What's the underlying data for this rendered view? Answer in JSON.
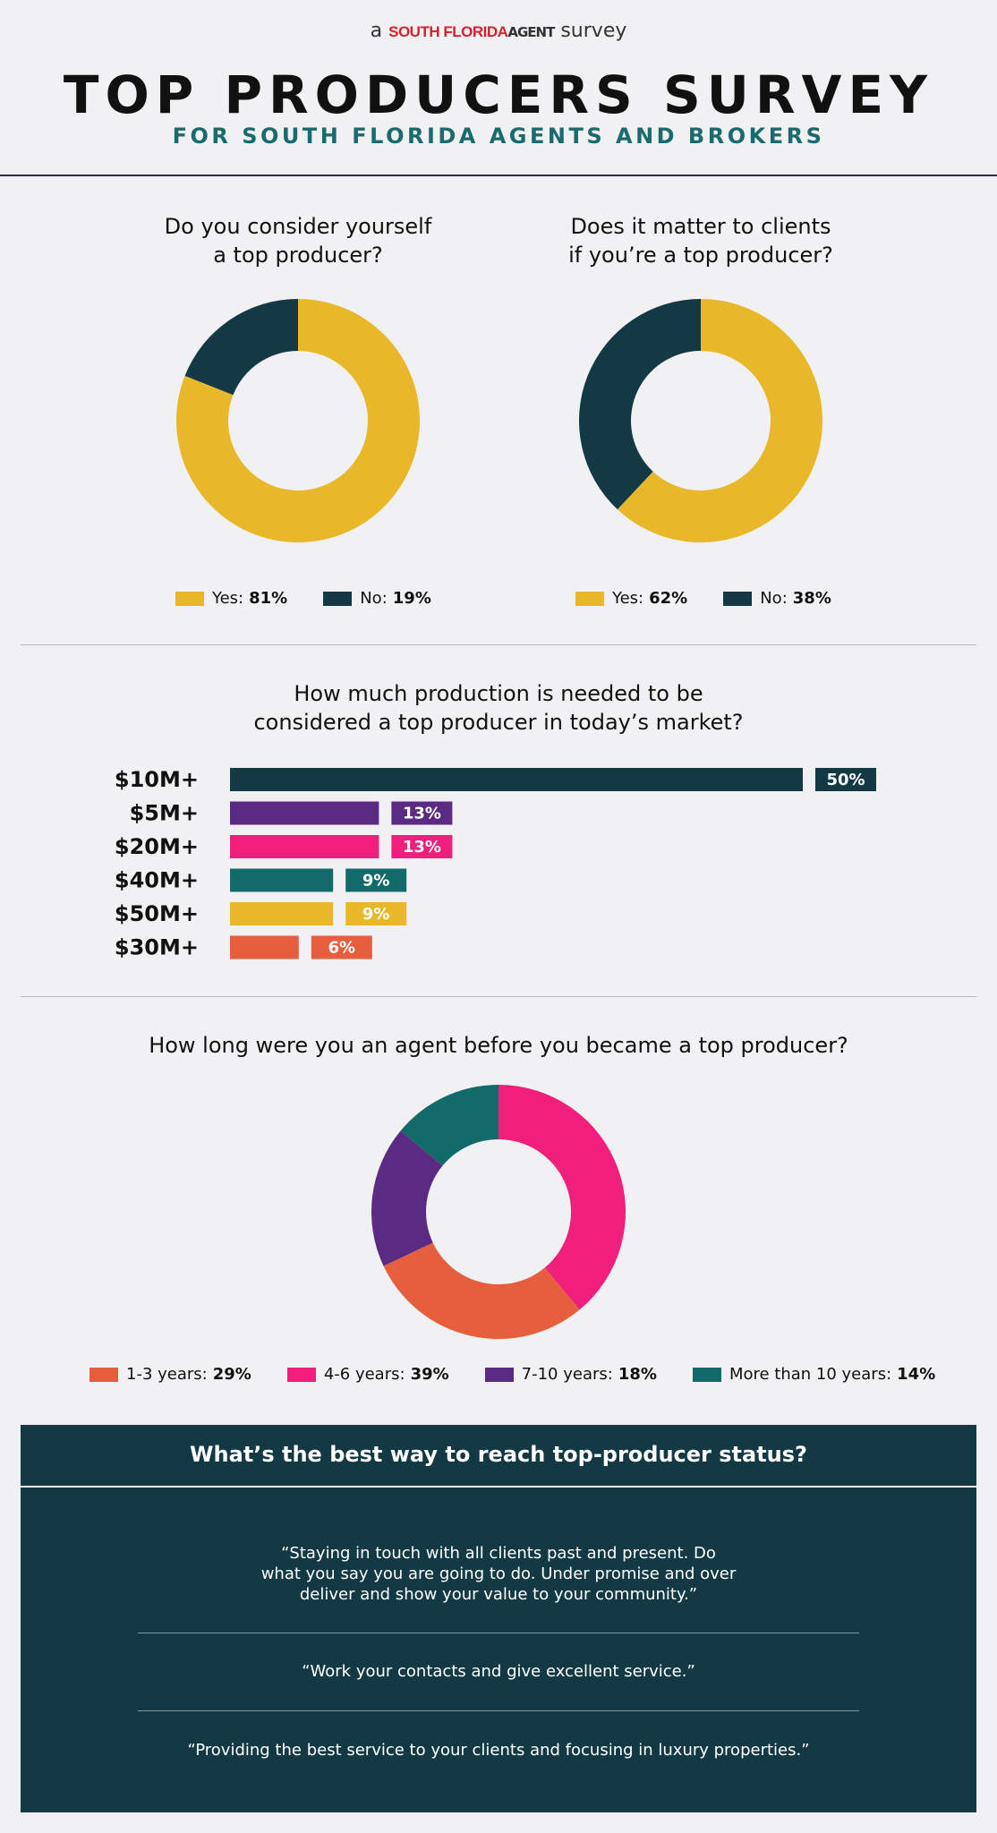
{
  "header": {
    "brand_prefix": "a",
    "brand_name": "SOUTH FLORIDA",
    "brand_agent": "AGENT",
    "brand_suffix": "survey",
    "title": "TOP PRODUCERS SURVEY",
    "subtitle": "FOR SOUTH FLORIDA AGENTS AND BROKERS"
  },
  "colors": {
    "yellow": "#e8b82a",
    "dark": "#133944",
    "purple": "#5b2b84",
    "pink": "#ef1f7b",
    "teal": "#136a6a",
    "orange": "#e55f3e"
  },
  "chart_data": [
    {
      "type": "pie",
      "title": "Do you consider yourself a top producer?",
      "title_lines": [
        "Do you consider yourself",
        "a top producer?"
      ],
      "categories": [
        "Yes",
        "No"
      ],
      "values": [
        81,
        19
      ],
      "colors": [
        "#e8b82a",
        "#133944"
      ],
      "legend": [
        {
          "label": "Yes:",
          "value": "81%"
        },
        {
          "label": "No:",
          "value": "19%"
        }
      ]
    },
    {
      "type": "pie",
      "title": "Does it matter to clients if you’re a top producer?",
      "title_lines": [
        "Does it matter to clients",
        "if you’re a top producer?"
      ],
      "categories": [
        "Yes",
        "No"
      ],
      "values": [
        62,
        38
      ],
      "colors": [
        "#e8b82a",
        "#133944"
      ],
      "legend": [
        {
          "label": "Yes:",
          "value": "62%"
        },
        {
          "label": "No:",
          "value": "38%"
        }
      ]
    },
    {
      "type": "bar",
      "title": "How much production is needed to be considered a top producer in today’s market?",
      "title_lines": [
        "How much production is needed to be",
        "considered a top producer in today’s market?"
      ],
      "categories": [
        "$10M+",
        "$5M+",
        "$20M+",
        "$40M+",
        "$50M+",
        "$30M+"
      ],
      "values": [
        50,
        13,
        13,
        9,
        9,
        6
      ],
      "labels": [
        "50%",
        "13%",
        "13%",
        "9%",
        "9%",
        "6%"
      ],
      "colors": [
        "#133944",
        "#5b2b84",
        "#ef1f7b",
        "#136a6a",
        "#e8b82a",
        "#e55f3e"
      ]
    },
    {
      "type": "pie",
      "title": "How long were you an agent before you became a top producer?",
      "categories": [
        "4-6 years",
        "1-3 years",
        "7-10 years",
        "More than 10 years"
      ],
      "values": [
        39,
        29,
        18,
        14
      ],
      "colors": [
        "#ef1f7b",
        "#e55f3e",
        "#5b2b84",
        "#136a6a"
      ],
      "legend": [
        {
          "label": "1-3 years:",
          "value": "29%",
          "color": "#e55f3e"
        },
        {
          "label": "4-6 years:",
          "value": "39%",
          "color": "#ef1f7b"
        },
        {
          "label": "7-10 years:",
          "value": "18%",
          "color": "#5b2b84"
        },
        {
          "label": "More than 10 years:",
          "value": "14%",
          "color": "#136a6a"
        }
      ]
    }
  ],
  "best_way": {
    "title": "What’s the best way to reach top-producer status?",
    "quotes": [
      {
        "lines": [
          "“Staying in touch with all clients past and present. Do",
          "what you say you are going to do. Under promise and over",
          "deliver and show your value to your community.”"
        ]
      },
      {
        "lines": [
          "“Work your contacts and give excellent service.”"
        ]
      },
      {
        "lines": [
          "“Providing the best service to your clients and focusing in luxury properties.”"
        ]
      }
    ]
  }
}
